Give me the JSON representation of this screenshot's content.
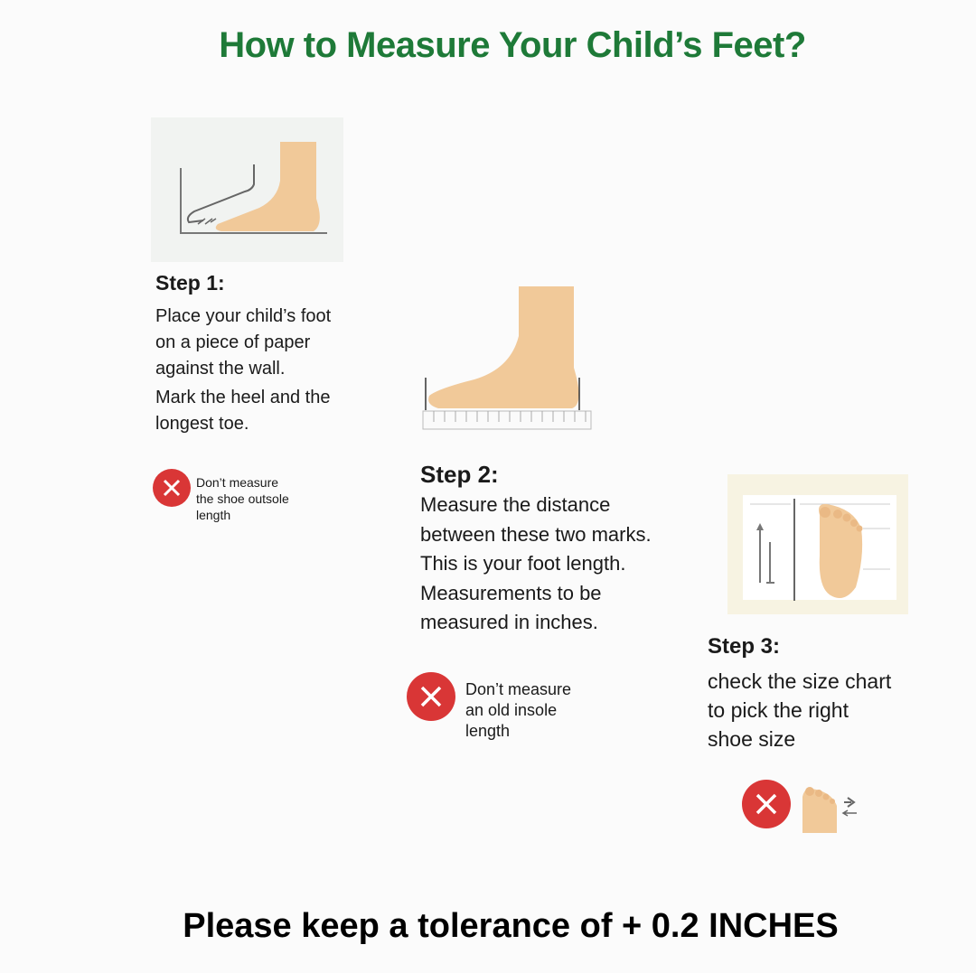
{
  "title": "How to Measure Your Child’s Feet?",
  "steps": [
    {
      "heading": "Step 1:",
      "lines": [
        "Place your child’s foot",
        "on a piece of paper",
        "against the wall.",
        "Mark the heel and the",
        "longest toe."
      ],
      "warning": {
        "icon": "x-circle-icon",
        "lines": [
          "Don’t measure",
          "the shoe outsole",
          "length"
        ]
      }
    },
    {
      "heading": "Step 2:",
      "lines": [
        "Measure the distance",
        "between these two marks.",
        "This is your foot length.",
        "Measurements to be",
        "measured in inches."
      ],
      "warning": {
        "icon": "x-circle-icon",
        "lines": [
          "Don’t measure",
          "an old insole",
          "length"
        ]
      }
    },
    {
      "heading": "Step 3:",
      "lines": [
        "check the size chart",
        "to pick the right",
        "shoe size"
      ],
      "warning": {
        "icon": "x-circle-icon"
      }
    }
  ],
  "tolerance_note": "Please keep a tolerance of + 0.2 INCHES",
  "colors": {
    "title": "#1e7a38",
    "warning": "#d93636",
    "skin": "#f1c999"
  }
}
